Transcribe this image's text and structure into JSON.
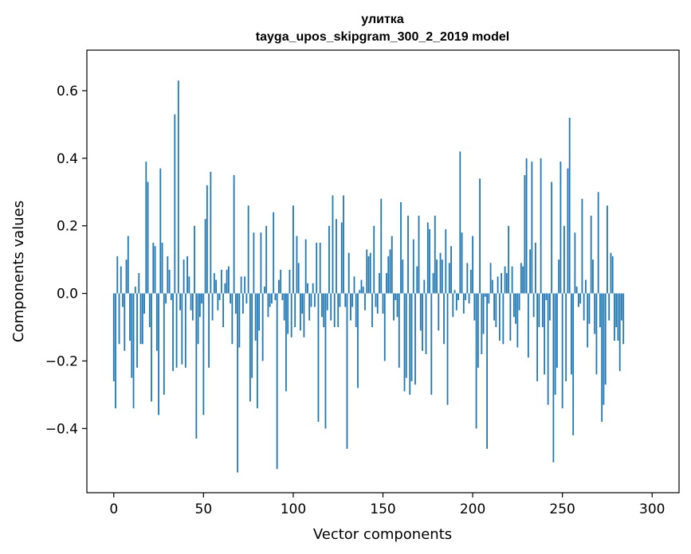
{
  "chart_data": {
    "type": "bar",
    "title": "улитка",
    "subtitle": "tayga_upos_skipgram_300_2_2019 model",
    "xlabel": "Vector components",
    "ylabel": "Components values",
    "xlim": [
      -15,
      315
    ],
    "ylim": [
      -0.59,
      0.72
    ],
    "xticks": [
      0,
      50,
      100,
      150,
      200,
      250,
      300
    ],
    "xtick_labels": [
      "0",
      "50",
      "100",
      "150",
      "200",
      "250",
      "300"
    ],
    "yticks": [
      -0.4,
      -0.2,
      0.0,
      0.2,
      0.4,
      0.6
    ],
    "ytick_labels": [
      "−0.4",
      "−0.2",
      "0.0",
      "0.2",
      "0.4",
      "0.6"
    ],
    "bar_color": "#1f77b4",
    "grid": false,
    "values": [
      -0.26,
      -0.34,
      0.11,
      -0.15,
      0.08,
      -0.04,
      -0.17,
      0.1,
      0.17,
      -0.14,
      -0.25,
      -0.34,
      0.02,
      -0.22,
      0.06,
      -0.15,
      -0.15,
      -0.06,
      0.39,
      0.33,
      -0.1,
      -0.32,
      0.15,
      0.14,
      -0.17,
      -0.36,
      0.37,
      0.15,
      -0.3,
      -0.03,
      0.11,
      0.07,
      -0.02,
      -0.23,
      0.53,
      -0.22,
      0.63,
      -0.05,
      -0.21,
      0.1,
      -0.22,
      0.11,
      0.05,
      -0.05,
      -0.08,
      0.2,
      -0.43,
      -0.15,
      -0.07,
      -0.03,
      -0.36,
      0.22,
      0.32,
      -0.22,
      0.36,
      -0.08,
      0.06,
      0.04,
      -0.05,
      -0.02,
      0.07,
      -0.1,
      0.03,
      0.07,
      0.08,
      -0.03,
      -0.15,
      0.35,
      -0.06,
      -0.53,
      -0.16,
      0.05,
      -0.06,
      0.05,
      -0.03,
      0.26,
      -0.32,
      -0.25,
      0.18,
      -0.14,
      -0.34,
      -0.11,
      0.18,
      -0.2,
      0.02,
      0.2,
      -0.07,
      -0.04,
      -0.03,
      0.24,
      -0.02,
      -0.52,
      0.04,
      0.07,
      -0.02,
      -0.08,
      -0.29,
      -0.12,
      0.07,
      -0.13,
      0.26,
      -0.1,
      0.17,
      0.09,
      -0.11,
      -0.06,
      -0.13,
      0.16,
      0.03,
      -0.08,
      -0.04,
      0.03,
      -0.04,
      0.15,
      -0.38,
      0.15,
      -0.07,
      -0.1,
      -0.4,
      -0.05,
      0.2,
      -0.08,
      0.29,
      -0.1,
      0.22,
      -0.1,
      -0.04,
      0.21,
      0.29,
      -0.04,
      -0.46,
      0.12,
      -0.08,
      -0.04,
      0.05,
      -0.1,
      -0.28,
      0.01,
      0.04,
      0.02,
      -0.05,
      0.13,
      0.11,
      0.12,
      -0.1,
      0.2,
      -0.04,
      -0.06,
      0.06,
      0.28,
      -0.06,
      -0.2,
      0.06,
      0.11,
      0.13,
      0.17,
      -0.08,
      -0.02,
      -0.07,
      -0.22,
      0.27,
      0.1,
      -0.29,
      -0.25,
      0.23,
      -0.3,
      -0.26,
      0.16,
      -0.27,
      0.08,
      0.23,
      -0.11,
      -0.17,
      0.04,
      -0.18,
      0.21,
      0.19,
      -0.3,
      0.06,
      0.23,
      0.1,
      -0.11,
      0.12,
      0.1,
      -0.15,
      0.19,
      -0.33,
      0.09,
      0.14,
      -0.07,
      0.01,
      -0.05,
      -0.02,
      0.42,
      0.18,
      -0.06,
      -0.02,
      0.09,
      -0.03,
      0.07,
      0.17,
      -0.08,
      -0.4,
      -0.22,
      0.34,
      -0.18,
      -0.12,
      -0.01,
      -0.46,
      -0.03,
      0.09,
      0.04,
      -0.08,
      -0.1,
      0.05,
      -0.14,
      0.06,
      -0.15,
      0.08,
      0.06,
      0.2,
      -0.14,
      0.08,
      -0.07,
      -0.09,
      -0.16,
      -0.05,
      0.09,
      0.08,
      0.35,
      0.4,
      -0.19,
      0.13,
      0.39,
      -0.07,
      0.15,
      -0.26,
      -0.1,
      0.4,
      -0.1,
      -0.24,
      -0.02,
      -0.33,
      -0.08,
      0.33,
      -0.5,
      -0.3,
      -0.22,
      0.1,
      0.39,
      -0.34,
      0.2,
      -0.26,
      0.37,
      0.52,
      -0.24,
      -0.42,
      0.18,
      0.02,
      -0.04,
      -0.03,
      0.28,
      -0.08,
      0.04,
      -0.16,
      -0.09,
      0.23,
      0.1,
      -0.12,
      -0.24,
      0.3,
      -0.1,
      -0.38,
      -0.33,
      -0.27,
      0.26,
      -0.08,
      0.12,
      0.11,
      -0.14,
      -0.1,
      -0.14,
      -0.23,
      -0.08,
      -0.15
    ]
  }
}
